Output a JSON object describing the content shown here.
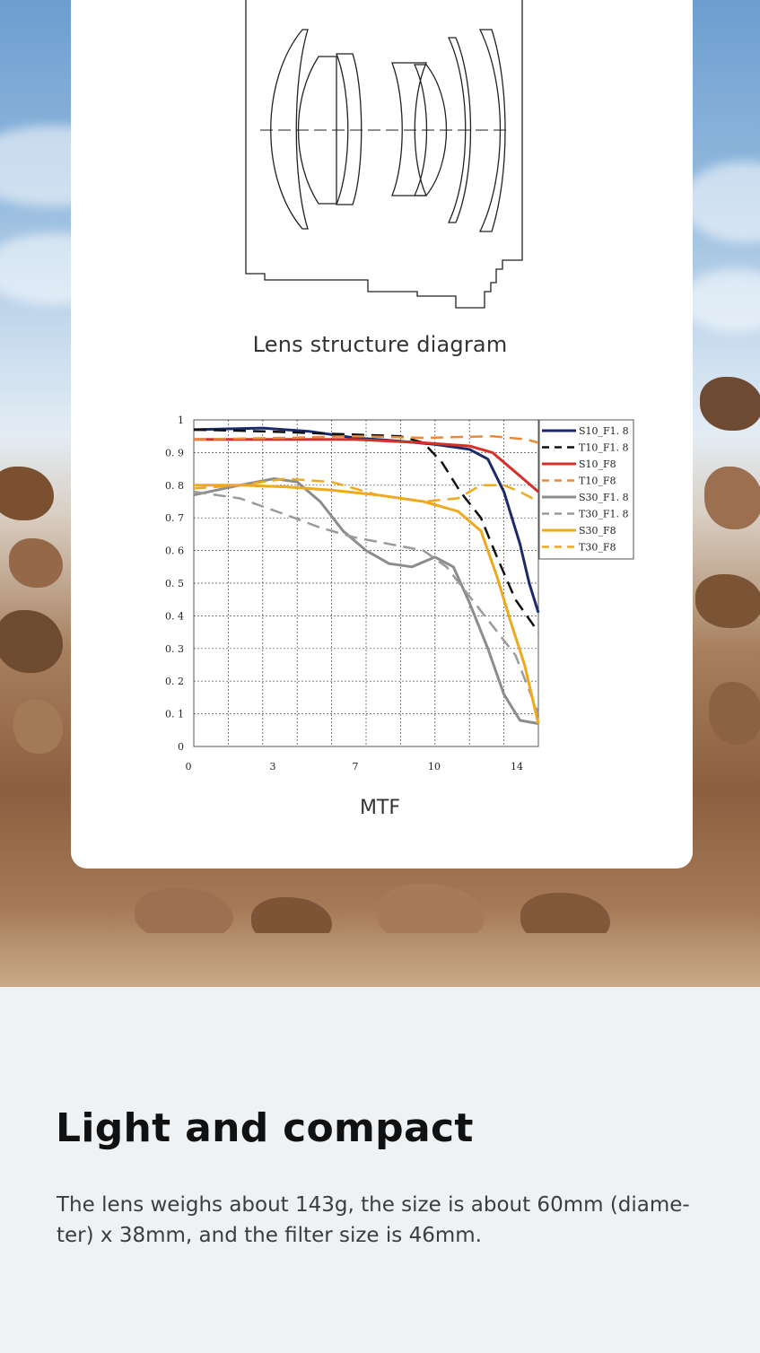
{
  "lens_diagram": {
    "caption": "Lens structure diagram"
  },
  "chart_data": {
    "type": "line",
    "title": "MTF",
    "xlabel": "",
    "ylabel": "",
    "xlim": [
      0,
      15
    ],
    "ylim": [
      0,
      1
    ],
    "x_ticks": [
      "0",
      "3",
      "7",
      "10",
      "14"
    ],
    "y_ticks": [
      "0",
      "0. 1",
      "0. 2",
      "0. 3",
      "0. 4",
      "0. 5",
      "0. 6",
      "0. 7",
      "0. 8",
      "0. 9",
      "1"
    ],
    "grid": true,
    "legend_position": "top-right",
    "series": [
      {
        "name": "S10_F1. 8",
        "color": "#1b2a6b",
        "dash": "",
        "width": 3,
        "points": [
          [
            0,
            0.97
          ],
          [
            3,
            0.975
          ],
          [
            5,
            0.965
          ],
          [
            7,
            0.945
          ],
          [
            9,
            0.935
          ],
          [
            10.5,
            0.925
          ],
          [
            12,
            0.91
          ],
          [
            12.8,
            0.88
          ],
          [
            13.5,
            0.78
          ],
          [
            14.2,
            0.62
          ],
          [
            14.6,
            0.5
          ],
          [
            15,
            0.41
          ]
        ]
      },
      {
        "name": "T10_F1. 8",
        "color": "#111111",
        "dash": "14,8",
        "width": 2.5,
        "points": [
          [
            0,
            0.97
          ],
          [
            3,
            0.965
          ],
          [
            5,
            0.96
          ],
          [
            7,
            0.955
          ],
          [
            9,
            0.95
          ],
          [
            10,
            0.93
          ],
          [
            10.8,
            0.87
          ],
          [
            11.6,
            0.78
          ],
          [
            12.5,
            0.7
          ],
          [
            13.2,
            0.58
          ],
          [
            14,
            0.45
          ],
          [
            15,
            0.35
          ]
        ]
      },
      {
        "name": "S10_F8",
        "color": "#d6302a",
        "dash": "",
        "width": 3,
        "points": [
          [
            0,
            0.94
          ],
          [
            4,
            0.94
          ],
          [
            7,
            0.94
          ],
          [
            10,
            0.93
          ],
          [
            12,
            0.92
          ],
          [
            13,
            0.9
          ],
          [
            14,
            0.84
          ],
          [
            15,
            0.78
          ]
        ]
      },
      {
        "name": "T10_F8",
        "color": "#e88a3a",
        "dash": "14,8",
        "width": 2.5,
        "points": [
          [
            0,
            0.94
          ],
          [
            4,
            0.945
          ],
          [
            7,
            0.95
          ],
          [
            10,
            0.945
          ],
          [
            13,
            0.95
          ],
          [
            14.5,
            0.94
          ],
          [
            15,
            0.93
          ]
        ]
      },
      {
        "name": "S30_F1. 8",
        "color": "#8c8c8c",
        "dash": "",
        "width": 3,
        "points": [
          [
            0,
            0.77
          ],
          [
            2,
            0.8
          ],
          [
            3.5,
            0.82
          ],
          [
            4.5,
            0.81
          ],
          [
            5.5,
            0.75
          ],
          [
            6.5,
            0.66
          ],
          [
            7.5,
            0.6
          ],
          [
            8.5,
            0.56
          ],
          [
            9.5,
            0.55
          ],
          [
            10.5,
            0.58
          ],
          [
            11.3,
            0.55
          ],
          [
            12,
            0.44
          ],
          [
            12.8,
            0.3
          ],
          [
            13.5,
            0.16
          ],
          [
            14.2,
            0.08
          ],
          [
            15,
            0.07
          ]
        ]
      },
      {
        "name": "T30_F1. 8",
        "color": "#9a9a9a",
        "dash": "14,8",
        "width": 2.5,
        "points": [
          [
            0,
            0.78
          ],
          [
            2,
            0.76
          ],
          [
            4,
            0.71
          ],
          [
            5.5,
            0.67
          ],
          [
            7,
            0.64
          ],
          [
            8.5,
            0.62
          ],
          [
            10,
            0.6
          ],
          [
            11,
            0.55
          ],
          [
            12,
            0.46
          ],
          [
            13,
            0.37
          ],
          [
            14,
            0.28
          ],
          [
            15,
            0.1
          ]
        ]
      },
      {
        "name": "S30_F8",
        "color": "#f0a81c",
        "dash": "",
        "width": 3,
        "points": [
          [
            0,
            0.8
          ],
          [
            2,
            0.8
          ],
          [
            4,
            0.795
          ],
          [
            6,
            0.785
          ],
          [
            8,
            0.77
          ],
          [
            10,
            0.75
          ],
          [
            11.5,
            0.72
          ],
          [
            12.5,
            0.66
          ],
          [
            13.2,
            0.52
          ],
          [
            13.8,
            0.38
          ],
          [
            14.4,
            0.25
          ],
          [
            15,
            0.07
          ]
        ]
      },
      {
        "name": "T30_F8",
        "color": "#f0a81c",
        "dash": "14,8",
        "width": 2.5,
        "points": [
          [
            0,
            0.79
          ],
          [
            2,
            0.8
          ],
          [
            4,
            0.82
          ],
          [
            6,
            0.81
          ],
          [
            8,
            0.77
          ],
          [
            10,
            0.75
          ],
          [
            11.5,
            0.76
          ],
          [
            12.5,
            0.8
          ],
          [
            13.5,
            0.8
          ],
          [
            14.2,
            0.78
          ],
          [
            15,
            0.75
          ]
        ]
      }
    ]
  },
  "section": {
    "title": "Light and compact",
    "description_line1": "The lens weighs about 143g, the size is about 60mm (diame-",
    "description_line2": "ter) x 38mm, and the filter size is 46mm."
  }
}
